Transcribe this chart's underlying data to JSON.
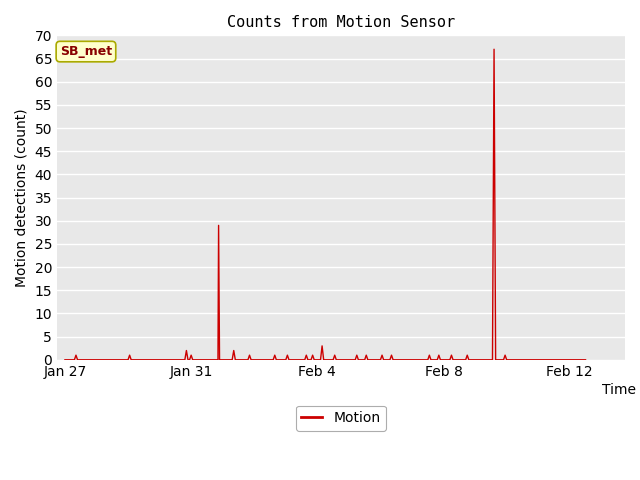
{
  "title": "Counts from Motion Sensor",
  "xlabel": "Time",
  "ylabel": "Motion detections (count)",
  "legend_label": "Motion",
  "line_color": "#cc0000",
  "plot_bg_color": "#e8e8e8",
  "fig_bg_color": "#ffffff",
  "ylim": [
    0,
    70
  ],
  "yticks": [
    0,
    5,
    10,
    15,
    20,
    25,
    30,
    35,
    40,
    45,
    50,
    55,
    60,
    65,
    70
  ],
  "xtick_labels": [
    "Jan 27",
    "Jan 31",
    "Feb 4",
    "Feb 8",
    "Feb 12"
  ],
  "legend_box_color": "#ffffcc",
  "legend_text_color": "#880000",
  "annotation_label": "SB_met",
  "spike_data": [
    [
      0.0,
      0
    ],
    [
      0.3,
      0
    ],
    [
      0.35,
      1
    ],
    [
      0.4,
      0
    ],
    [
      2.0,
      0
    ],
    [
      2.05,
      1
    ],
    [
      2.1,
      0
    ],
    [
      3.8,
      0
    ],
    [
      3.85,
      2
    ],
    [
      3.9,
      0
    ],
    [
      3.95,
      0
    ],
    [
      4.0,
      1
    ],
    [
      4.05,
      0
    ],
    [
      4.85,
      0
    ],
    [
      4.87,
      29
    ],
    [
      4.9,
      0
    ],
    [
      5.3,
      0
    ],
    [
      5.35,
      2
    ],
    [
      5.4,
      0
    ],
    [
      5.8,
      0
    ],
    [
      5.85,
      1
    ],
    [
      5.9,
      0
    ],
    [
      6.6,
      0
    ],
    [
      6.65,
      1
    ],
    [
      6.7,
      0
    ],
    [
      7.0,
      0
    ],
    [
      7.05,
      1
    ],
    [
      7.1,
      0
    ],
    [
      7.6,
      0
    ],
    [
      7.65,
      1
    ],
    [
      7.7,
      0
    ],
    [
      7.8,
      0
    ],
    [
      7.85,
      1
    ],
    [
      7.9,
      0
    ],
    [
      8.1,
      0
    ],
    [
      8.15,
      3
    ],
    [
      8.2,
      0
    ],
    [
      8.5,
      0
    ],
    [
      8.55,
      1
    ],
    [
      8.6,
      0
    ],
    [
      9.2,
      0
    ],
    [
      9.25,
      1
    ],
    [
      9.3,
      0
    ],
    [
      9.5,
      0
    ],
    [
      9.55,
      1
    ],
    [
      9.6,
      0
    ],
    [
      10.0,
      0
    ],
    [
      10.05,
      1
    ],
    [
      10.1,
      0
    ],
    [
      10.3,
      0
    ],
    [
      10.35,
      1
    ],
    [
      10.4,
      0
    ],
    [
      11.5,
      0
    ],
    [
      11.55,
      1
    ],
    [
      11.6,
      0
    ],
    [
      11.8,
      0
    ],
    [
      11.85,
      1
    ],
    [
      11.9,
      0
    ],
    [
      12.2,
      0
    ],
    [
      12.25,
      1
    ],
    [
      12.3,
      0
    ],
    [
      12.7,
      0
    ],
    [
      12.75,
      1
    ],
    [
      12.8,
      0
    ],
    [
      13.55,
      0
    ],
    [
      13.6,
      67
    ],
    [
      13.65,
      0
    ],
    [
      13.9,
      0
    ],
    [
      13.95,
      1
    ],
    [
      14.0,
      0
    ],
    [
      16.5,
      0
    ]
  ]
}
